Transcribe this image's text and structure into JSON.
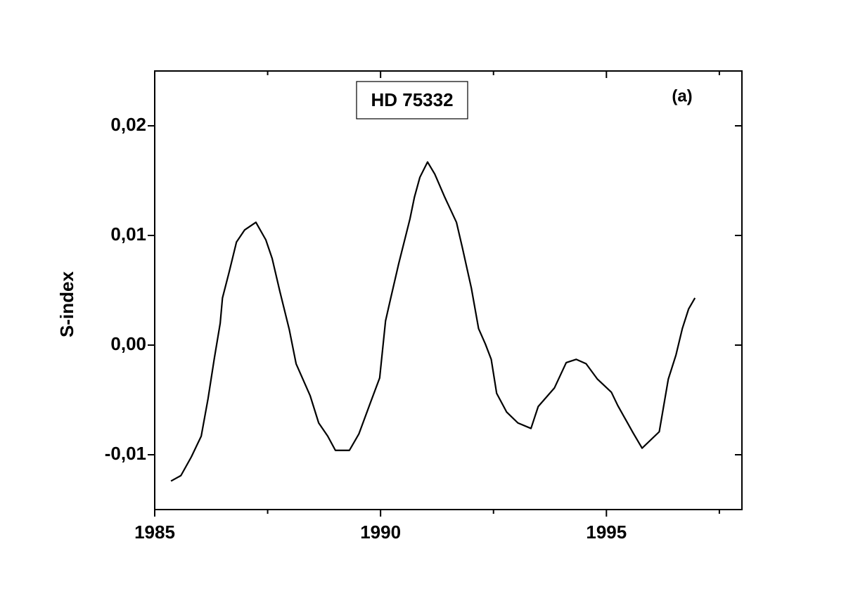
{
  "chart_data": {
    "type": "line",
    "title": "HD 75332",
    "annotation": "(a)",
    "y_label": "S-index",
    "x": [
      1985.36,
      1985.58,
      1985.81,
      1986.03,
      1986.18,
      1986.32,
      1986.45,
      1986.5,
      1986.65,
      1986.81,
      1986.99,
      1987.24,
      1987.46,
      1987.6,
      1987.77,
      1987.98,
      1988.13,
      1988.44,
      1988.63,
      1988.83,
      1989.0,
      1989.31,
      1989.52,
      1989.78,
      1989.98,
      1990.11,
      1990.22,
      1990.4,
      1990.65,
      1990.75,
      1990.87,
      1991.04,
      1991.2,
      1991.42,
      1991.68,
      1991.81,
      1992.01,
      1992.17,
      1992.32,
      1992.45,
      1992.57,
      1992.79,
      1993.04,
      1993.33,
      1993.49,
      1993.85,
      1994.11,
      1994.33,
      1994.55,
      1994.8,
      1995.11,
      1995.25,
      1995.59,
      1995.79,
      1996.17,
      1996.37,
      1996.54,
      1996.68,
      1996.82,
      1996.96
    ],
    "series": [
      {
        "color": "#000000",
        "values": [
          -0.0124,
          -0.0119,
          -0.0102,
          -0.0083,
          -0.0049,
          -0.0012,
          0.002,
          0.0043,
          0.0067,
          0.0094,
          0.0105,
          0.0112,
          0.0096,
          0.0079,
          0.0049,
          0.0014,
          -0.0017,
          -0.0046,
          -0.0071,
          -0.0083,
          -0.0096,
          -0.0096,
          -0.0081,
          -0.0052,
          -0.003,
          0.0022,
          0.0042,
          0.0074,
          0.0115,
          0.0135,
          0.0153,
          0.0167,
          0.0156,
          0.0135,
          0.0112,
          0.0089,
          0.0052,
          0.0015,
          0.0001,
          -0.0013,
          -0.0044,
          -0.0061,
          -0.0071,
          -0.0076,
          -0.0056,
          -0.0039,
          -0.0016,
          -0.0013,
          -0.0017,
          -0.0031,
          -0.0043,
          -0.0055,
          -0.008,
          -0.0094,
          -0.0079,
          -0.0031,
          -0.0009,
          0.0015,
          0.0033,
          0.0043
        ]
      }
    ],
    "xlim": [
      1985,
      1998
    ],
    "xticks": [
      1985,
      1990,
      1995
    ],
    "xticks_minor": [
      1987.5,
      1992.5,
      1997.5
    ],
    "ylim": [
      -0.015,
      0.025
    ],
    "yticks": [
      {
        "value": -0.01,
        "label": "-0,01"
      },
      {
        "value": 0,
        "label": "0,00"
      },
      {
        "value": 0.01,
        "label": "0,01"
      },
      {
        "value": 0.02,
        "label": "0,02"
      }
    ]
  }
}
